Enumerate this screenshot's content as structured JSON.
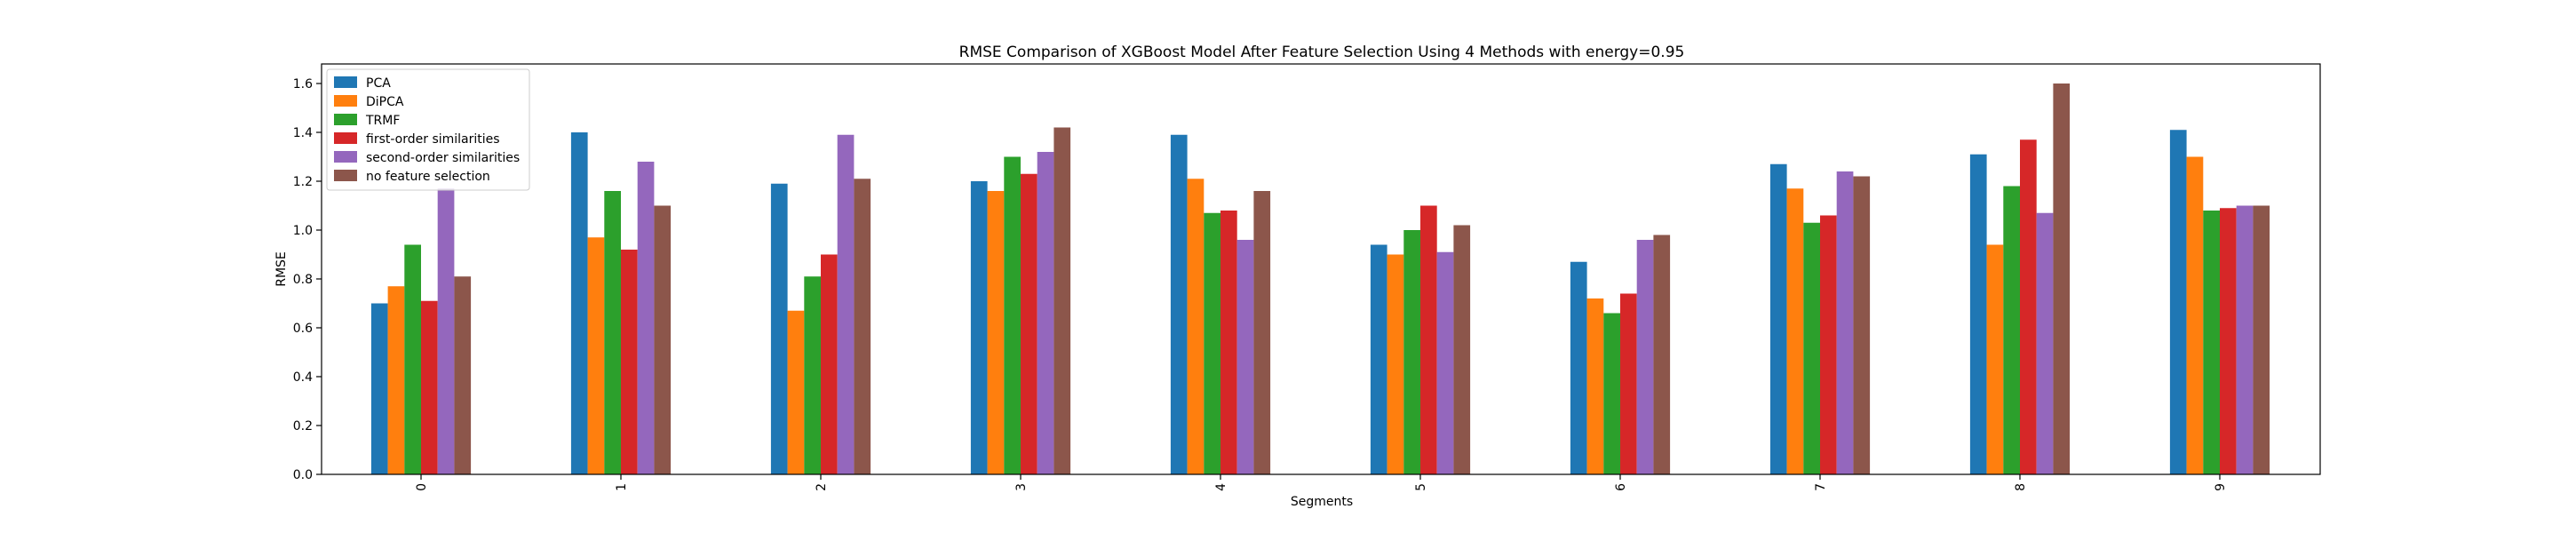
{
  "chart_data": {
    "type": "bar",
    "title": "RMSE Comparison of XGBoost Model After Feature Selection Using 4 Methods with energy=0.95",
    "xlabel": "Segments",
    "ylabel": "RMSE",
    "categories": [
      "0",
      "1",
      "2",
      "3",
      "4",
      "5",
      "6",
      "7",
      "8",
      "9"
    ],
    "ylim": [
      0,
      1.68
    ],
    "yticks": [
      "0.0",
      "0.2",
      "0.4",
      "0.6",
      "0.8",
      "1.0",
      "1.2",
      "1.4",
      "1.6"
    ],
    "grid": false,
    "legend_position": "top-left",
    "series": [
      {
        "name": "PCA",
        "color": "#1f77b4",
        "values": [
          0.7,
          1.4,
          1.19,
          1.2,
          1.39,
          0.94,
          0.87,
          1.27,
          1.31,
          1.41
        ]
      },
      {
        "name": "DiPCA",
        "color": "#ff7f0e",
        "values": [
          0.77,
          0.97,
          0.67,
          1.16,
          1.21,
          0.9,
          0.72,
          1.17,
          0.94,
          1.3
        ]
      },
      {
        "name": "TRMF",
        "color": "#2ca02c",
        "values": [
          0.94,
          1.16,
          0.81,
          1.3,
          1.07,
          1.0,
          0.66,
          1.03,
          1.18,
          1.08
        ]
      },
      {
        "name": "first-order similarities",
        "color": "#d62728",
        "values": [
          0.71,
          0.92,
          0.9,
          1.23,
          1.08,
          1.1,
          0.74,
          1.06,
          1.37,
          1.09
        ]
      },
      {
        "name": "second-order similarities",
        "color": "#9467bd",
        "values": [
          1.17,
          1.28,
          1.39,
          1.32,
          0.96,
          0.91,
          0.96,
          1.24,
          1.07,
          1.1
        ]
      },
      {
        "name": "no feature selection",
        "color": "#8c564b",
        "values": [
          0.81,
          1.1,
          1.21,
          1.42,
          1.16,
          1.02,
          0.98,
          1.22,
          1.6,
          1.1
        ]
      }
    ]
  }
}
